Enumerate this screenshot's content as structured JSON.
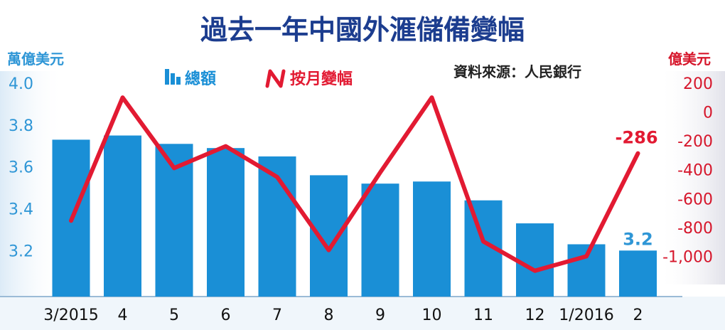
{
  "title": "過去一年中國外滙儲備變幅",
  "source": "資料來源：人民銀行",
  "chart_data": {
    "type": "bar",
    "categories": [
      "3/2015",
      "4",
      "5",
      "6",
      "7",
      "8",
      "9",
      "10",
      "11",
      "12",
      "1/2016",
      "2"
    ],
    "series": [
      {
        "name": "總額",
        "type": "bar",
        "axis": "left",
        "values": [
          3.73,
          3.75,
          3.71,
          3.69,
          3.65,
          3.56,
          3.52,
          3.53,
          3.44,
          3.33,
          3.23,
          3.2
        ]
      },
      {
        "name": "按月變幅",
        "type": "line",
        "axis": "right",
        "values": [
          -753,
          101,
          -388,
          -237,
          -450,
          -957,
          -418,
          101,
          -897,
          -1100,
          -1000,
          -286
        ]
      }
    ],
    "left_axis": {
      "label": "萬億美元",
      "ticks": [
        "4.0",
        "3.8",
        "3.6",
        "3.4",
        "3.2"
      ],
      "ylim": [
        2.98,
        4.0
      ]
    },
    "right_axis": {
      "label": "億美元",
      "ticks": [
        "200",
        "0",
        "-200",
        "-400",
        "-600",
        "-800",
        "-1,000"
      ],
      "ylim": [
        -1200,
        200
      ]
    },
    "annotations": {
      "last_bar_label": "3.2",
      "last_line_label": "-286"
    },
    "legend": {
      "placement": "top-center"
    },
    "colors": {
      "bar": "#1a8fd6",
      "line": "#e21a32",
      "title": "#1c3d8f",
      "left_axis_text": "#2f96d6",
      "right_axis_text": "#d6162b",
      "axis_band_left": "#e8f2fa",
      "axis_band_right": "#eeeef3"
    }
  }
}
